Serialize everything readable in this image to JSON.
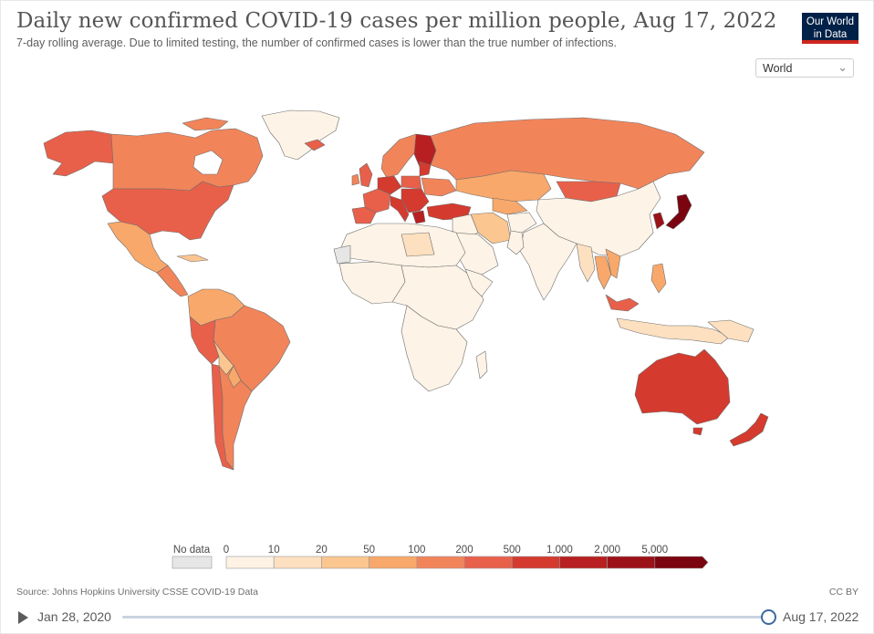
{
  "header": {
    "title": "Daily new confirmed COVID-19 cases per million people, Aug 17, 2022",
    "subtitle": "7-day rolling average. Due to limited testing, the number of confirmed cases is lower than the true number of infections.",
    "logo_line1": "Our World",
    "logo_line2": "in Data"
  },
  "region_selector": {
    "value": "World"
  },
  "legend": {
    "no_data_label": "No data",
    "bins": [
      {
        "label": "0",
        "color": "#fdf2e4"
      },
      {
        "label": "10",
        "color": "#fde0c0"
      },
      {
        "label": "20",
        "color": "#fbc690"
      },
      {
        "label": "50",
        "color": "#f8a86a"
      },
      {
        "label": "100",
        "color": "#f2845a"
      },
      {
        "label": "200",
        "color": "#e8604a"
      },
      {
        "label": "500",
        "color": "#d43a2e"
      },
      {
        "label": "1,000",
        "color": "#b81f20"
      },
      {
        "label": "2,000",
        "color": "#9c1018"
      },
      {
        "label": "5,000",
        "color": "#7a0410"
      }
    ],
    "no_data_color": "#e6e6e6"
  },
  "footer": {
    "source": "Source: Johns Hopkins University CSSE COVID-19 Data",
    "license": "CC BY"
  },
  "timeline": {
    "start": "Jan 28, 2020",
    "end": "Aug 17, 2022",
    "position": 1.0
  },
  "colors": {
    "no_data": "#e6e6e6",
    "c0": "#fdf3e6",
    "c10": "#fde0c0",
    "c20": "#fbc690",
    "c50": "#f8a86a",
    "c100": "#f2845a",
    "c200": "#e8604a",
    "c500": "#d43a2e",
    "c1000": "#b81f20",
    "c2000": "#9c1018",
    "c5000": "#7a0410"
  }
}
